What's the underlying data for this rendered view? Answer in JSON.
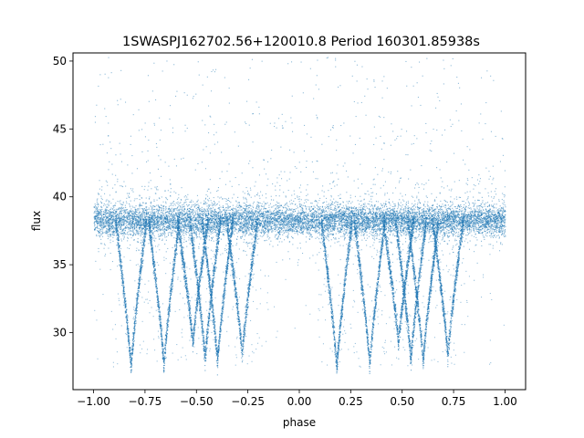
{
  "chart_data": {
    "type": "scatter",
    "title": "1SWASPJ162702.56+120010.8 Period 160301.85938s",
    "xlabel": "phase",
    "ylabel": "flux",
    "xlim": [
      -1.1,
      1.1
    ],
    "ylim": [
      25.8,
      50.6
    ],
    "x_ticks": [
      -1.0,
      -0.75,
      -0.5,
      -0.25,
      0.0,
      0.25,
      0.5,
      0.75,
      1.0
    ],
    "x_tick_labels": [
      "−1.00",
      "−0.75",
      "−0.50",
      "−0.25",
      "0.00",
      "0.25",
      "0.50",
      "0.75",
      "1.00"
    ],
    "y_ticks": [
      30,
      35,
      40,
      45,
      50
    ],
    "y_tick_labels": [
      "30",
      "35",
      "40",
      "45",
      "50"
    ],
    "grid": false,
    "legend": "none",
    "marker_color": "#1f77b4",
    "series": [
      {
        "baseline_flux": 38.3,
        "phase_range": [
          -1.0,
          1.0
        ],
        "eclipse_tracks": [
          {
            "center_phase": -0.46,
            "min_flux": 28.0
          },
          {
            "center_phase": -0.4,
            "min_flux": 27.8
          },
          {
            "center_phase": -0.52,
            "min_flux": 29.2
          },
          {
            "center_phase": -0.82,
            "min_flux": 27.4
          },
          {
            "center_phase": -0.66,
            "min_flux": 27.6
          },
          {
            "center_phase": -0.28,
            "min_flux": 28.3
          },
          {
            "center_phase": 0.54,
            "min_flux": 28.0
          },
          {
            "center_phase": 0.6,
            "min_flux": 27.8
          },
          {
            "center_phase": 0.48,
            "min_flux": 29.2
          },
          {
            "center_phase": 0.18,
            "min_flux": 27.4
          },
          {
            "center_phase": 0.34,
            "min_flux": 27.6
          },
          {
            "center_phase": 0.72,
            "min_flux": 28.3
          }
        ]
      }
    ]
  }
}
